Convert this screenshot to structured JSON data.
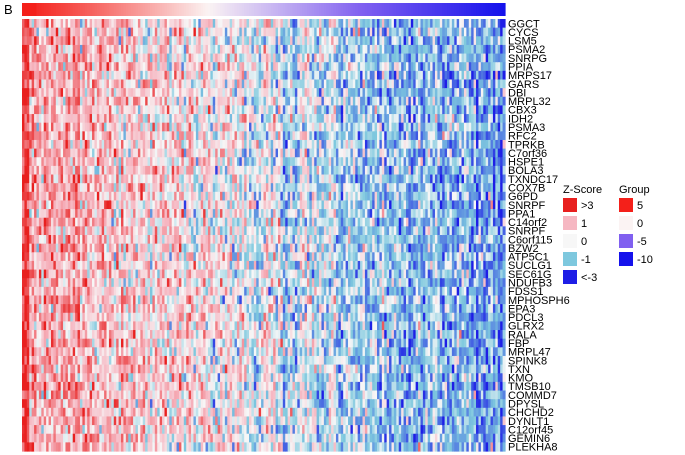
{
  "panel_letter": "B",
  "chart_data": {
    "type": "heatmap",
    "title": "",
    "xlabel": "",
    "ylabel": "",
    "rows": [
      "GGCT",
      "CYCS",
      "LSM5",
      "PSMA2",
      "SNRPG",
      "PPIA",
      "MRPS17",
      "GARS",
      "DBI",
      "MRPL32",
      "CBX3",
      "IDH2",
      "PSMA3",
      "RFC2",
      "TPRKB",
      "C7orf36",
      "HSPE1",
      "BOLA3",
      "TXNDC17",
      "COX7B",
      "G6PD",
      "SNRPF",
      "PPA1",
      "C14orf2",
      "SNRPF",
      "C6orf115",
      "BZW2",
      "ATP5C1",
      "SUCLG1",
      "SEC61G",
      "NDUFB3",
      "FDSS1",
      "MPHOSPH6",
      "EPA3",
      "PDCL3",
      "GLRX2",
      "RALA",
      "FBP",
      "MRPL47",
      "SPINK8",
      "TXN",
      "KMO",
      "TMSB10",
      "COMMD7",
      "DPYSL",
      "CHCHD2",
      "DYNLT1",
      "C12orf45",
      "GEMIN6",
      "PLEKHA8"
    ],
    "n_columns": 200,
    "value_range": [
      -3,
      3
    ],
    "pattern": "red on left, blue on right",
    "annotation_bar": {
      "name": "Group",
      "range": [
        -10,
        5
      ]
    },
    "colors": {
      "high": "#e8201f",
      "mid_high": "#f6b7c2",
      "zero": "#f7f7f7",
      "mid_low": "#7ec8de",
      "low": "#1e1ee6",
      "group_5": "#f4201a",
      "group_0": "#fbf3f3",
      "group_minus5": "#8060f0",
      "group_minus10": "#1512ec"
    },
    "legends": [
      {
        "title": "Z-Score",
        "entries": [
          {
            "label": ">3",
            "color": "#e8201f"
          },
          {
            "label": "1",
            "color": "#f6b7c2"
          },
          {
            "label": "0",
            "color": "#f7f7f7"
          },
          {
            "label": "-1",
            "color": "#7ec8de"
          },
          {
            "label": "<-3",
            "color": "#1e1ee6"
          }
        ]
      },
      {
        "title": "Group",
        "entries": [
          {
            "label": "5",
            "color": "#f4201a"
          },
          {
            "label": "0",
            "color": "#fbf3f3"
          },
          {
            "label": "-5",
            "color": "#8060f0"
          },
          {
            "label": "-10",
            "color": "#1512ec"
          }
        ]
      }
    ]
  }
}
